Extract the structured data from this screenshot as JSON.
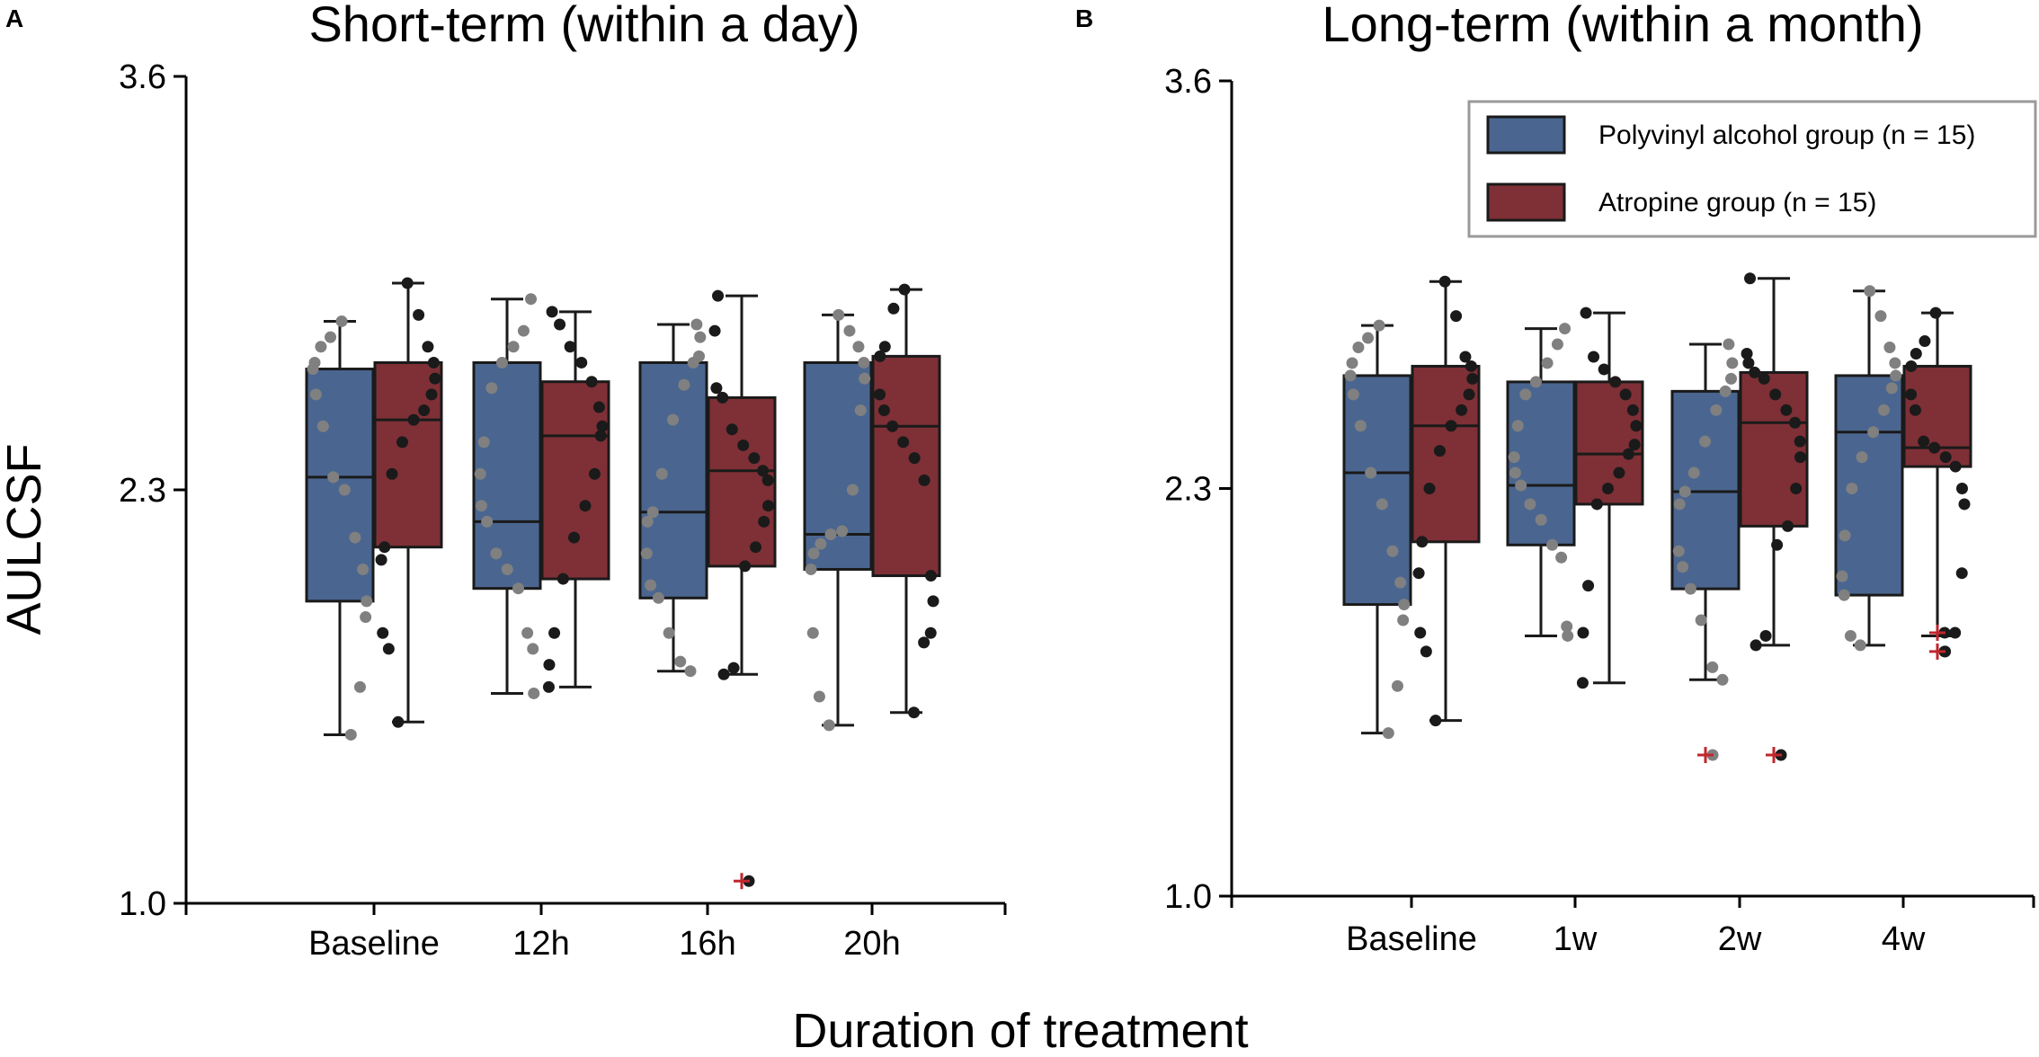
{
  "figure": {
    "xlabel": "Duration of treatment",
    "ylabel": "AULCSF"
  },
  "legend": {
    "items": [
      {
        "label": "Polyvinyl alcohol group (n = 15)",
        "color": "#4a6690"
      },
      {
        "label": "Atropine group (n = 15)",
        "color": "#7e3036"
      }
    ]
  },
  "colors": {
    "pva_box": "#4a6690",
    "atropine_box": "#7e3036",
    "pva_points": "#808080",
    "atropine_points": "#1a1a1a",
    "outlier": "#c0262d",
    "axis": "#000000"
  },
  "chart_data": [
    {
      "panel": "A",
      "type": "box",
      "title": "Short-term (within a day)",
      "categories": [
        "Baseline",
        "12h",
        "16h",
        "20h"
      ],
      "ylim": [
        1.0,
        3.6
      ],
      "yticks": [
        {
          "value": 1.0,
          "label": "1.0"
        },
        {
          "value": 2.3,
          "label": "2.3"
        },
        {
          "value": 3.6,
          "label": "3.6"
        }
      ],
      "series": [
        {
          "name": "Polyvinyl alcohol group (n = 15)",
          "boxes": [
            {
              "whisker_low": 1.53,
              "q1": 1.95,
              "median": 2.34,
              "q3": 2.68,
              "whisker_high": 2.83,
              "outliers": [],
              "points": [
                1.53,
                1.68,
                1.9,
                1.95,
                2.05,
                2.15,
                2.3,
                2.34,
                2.5,
                2.6,
                2.68,
                2.7,
                2.75,
                2.78,
                2.83
              ]
            },
            {
              "whisker_low": 1.66,
              "q1": 1.99,
              "median": 2.2,
              "q3": 2.7,
              "whisker_high": 2.9,
              "outliers": [],
              "points": [
                1.66,
                1.8,
                1.85,
                1.99,
                2.05,
                2.1,
                2.2,
                2.25,
                2.35,
                2.45,
                2.62,
                2.7,
                2.75,
                2.8,
                2.9
              ]
            },
            {
              "whisker_low": 1.73,
              "q1": 1.96,
              "median": 2.23,
              "q3": 2.7,
              "whisker_high": 2.82,
              "outliers": [],
              "points": [
                1.73,
                1.76,
                1.85,
                1.96,
                2.0,
                2.1,
                2.2,
                2.23,
                2.35,
                2.52,
                2.63,
                2.7,
                2.72,
                2.78,
                2.82
              ]
            },
            {
              "whisker_low": 1.56,
              "q1": 2.05,
              "median": 2.16,
              "q3": 2.7,
              "whisker_high": 2.85,
              "outliers": [],
              "points": [
                1.56,
                1.65,
                1.85,
                2.05,
                2.1,
                2.13,
                2.16,
                2.17,
                2.3,
                2.55,
                2.65,
                2.7,
                2.75,
                2.8,
                2.85
              ]
            }
          ]
        },
        {
          "name": "Atropine group (n = 15)",
          "boxes": [
            {
              "whisker_low": 1.57,
              "q1": 2.12,
              "median": 2.52,
              "q3": 2.7,
              "whisker_high": 2.95,
              "outliers": [],
              "points": [
                1.57,
                1.8,
                1.85,
                2.08,
                2.12,
                2.35,
                2.45,
                2.52,
                2.55,
                2.6,
                2.65,
                2.7,
                2.75,
                2.85,
                2.95
              ]
            },
            {
              "whisker_low": 1.68,
              "q1": 2.02,
              "median": 2.47,
              "q3": 2.64,
              "whisker_high": 2.86,
              "outliers": [],
              "points": [
                1.68,
                1.75,
                1.85,
                2.02,
                2.15,
                2.25,
                2.35,
                2.47,
                2.5,
                2.56,
                2.64,
                2.7,
                2.75,
                2.82,
                2.86
              ]
            },
            {
              "whisker_low": 1.72,
              "q1": 2.06,
              "median": 2.36,
              "q3": 2.59,
              "whisker_high": 2.91,
              "outliers": [
                1.07
              ],
              "points": [
                1.72,
                1.74,
                2.06,
                2.12,
                2.2,
                2.25,
                2.33,
                2.36,
                2.4,
                2.44,
                2.49,
                2.59,
                2.62,
                2.8,
                2.91
              ]
            },
            {
              "whisker_low": 1.6,
              "q1": 2.03,
              "median": 2.5,
              "q3": 2.72,
              "whisker_high": 2.93,
              "outliers": [],
              "points": [
                1.6,
                1.82,
                1.85,
                1.95,
                2.03,
                2.33,
                2.4,
                2.45,
                2.5,
                2.55,
                2.6,
                2.72,
                2.75,
                2.87,
                2.93
              ]
            }
          ]
        }
      ]
    },
    {
      "panel": "B",
      "type": "box",
      "title": "Long-term (within a month)",
      "categories": [
        "Baseline",
        "1w",
        "2w",
        "4w"
      ],
      "ylim": [
        1.0,
        3.6
      ],
      "yticks": [
        {
          "value": 1.0,
          "label": "1.0"
        },
        {
          "value": 2.3,
          "label": "2.3"
        },
        {
          "value": 3.6,
          "label": "3.6"
        }
      ],
      "series": [
        {
          "name": "Polyvinyl alcohol group (n = 15)",
          "boxes": [
            {
              "whisker_low": 1.52,
              "q1": 1.93,
              "median": 2.35,
              "q3": 2.66,
              "whisker_high": 2.82,
              "outliers": [],
              "points": [
                1.52,
                1.67,
                1.88,
                1.93,
                2.0,
                2.1,
                2.25,
                2.35,
                2.5,
                2.6,
                2.66,
                2.7,
                2.75,
                2.78,
                2.82
              ]
            },
            {
              "whisker_low": 1.83,
              "q1": 2.12,
              "median": 2.31,
              "q3": 2.64,
              "whisker_high": 2.81,
              "outliers": [],
              "points": [
                1.83,
                1.86,
                2.08,
                2.12,
                2.2,
                2.25,
                2.31,
                2.35,
                2.4,
                2.5,
                2.6,
                2.64,
                2.7,
                2.76,
                2.81
              ]
            },
            {
              "whisker_low": 1.69,
              "q1": 1.98,
              "median": 2.29,
              "q3": 2.61,
              "whisker_high": 2.76,
              "outliers": [
                1.45
              ],
              "points": [
                1.69,
                1.73,
                1.88,
                1.98,
                2.05,
                2.1,
                2.25,
                2.29,
                2.35,
                2.45,
                2.55,
                2.61,
                2.65,
                2.7,
                2.76
              ]
            },
            {
              "whisker_low": 1.8,
              "q1": 1.96,
              "median": 2.48,
              "q3": 2.66,
              "whisker_high": 2.93,
              "outliers": [],
              "points": [
                1.8,
                1.83,
                1.96,
                2.02,
                2.15,
                2.3,
                2.4,
                2.48,
                2.55,
                2.62,
                2.66,
                2.7,
                2.75,
                2.85,
                2.93
              ]
            }
          ]
        },
        {
          "name": "Atropine group (n = 15)",
          "boxes": [
            {
              "whisker_low": 1.56,
              "q1": 2.13,
              "median": 2.5,
              "q3": 2.69,
              "whisker_high": 2.96,
              "outliers": [],
              "points": [
                1.56,
                1.78,
                1.84,
                2.03,
                2.13,
                2.3,
                2.42,
                2.5,
                2.55,
                2.6,
                2.65,
                2.69,
                2.72,
                2.85,
                2.96
              ]
            },
            {
              "whisker_low": 1.68,
              "q1": 2.25,
              "median": 2.41,
              "q3": 2.64,
              "whisker_high": 2.86,
              "outliers": [],
              "points": [
                1.68,
                1.84,
                1.99,
                2.25,
                2.3,
                2.35,
                2.41,
                2.44,
                2.5,
                2.55,
                2.6,
                2.64,
                2.68,
                2.72,
                2.86
              ]
            },
            {
              "whisker_low": 1.8,
              "q1": 2.18,
              "median": 2.51,
              "q3": 2.67,
              "whisker_high": 2.97,
              "outliers": [
                1.45
              ],
              "points": [
                1.8,
                1.83,
                2.12,
                2.18,
                2.3,
                2.4,
                2.45,
                2.51,
                2.55,
                2.6,
                2.65,
                2.67,
                2.7,
                2.73,
                2.97
              ]
            },
            {
              "whisker_low": 1.83,
              "q1": 2.37,
              "median": 2.43,
              "q3": 2.69,
              "whisker_high": 2.86,
              "outliers": [
                1.84,
                1.78
              ],
              "points": [
                1.78,
                1.84,
                2.03,
                2.25,
                2.3,
                2.37,
                2.4,
                2.43,
                2.45,
                2.55,
                2.6,
                2.69,
                2.73,
                2.77,
                2.86
              ]
            }
          ]
        }
      ]
    }
  ]
}
